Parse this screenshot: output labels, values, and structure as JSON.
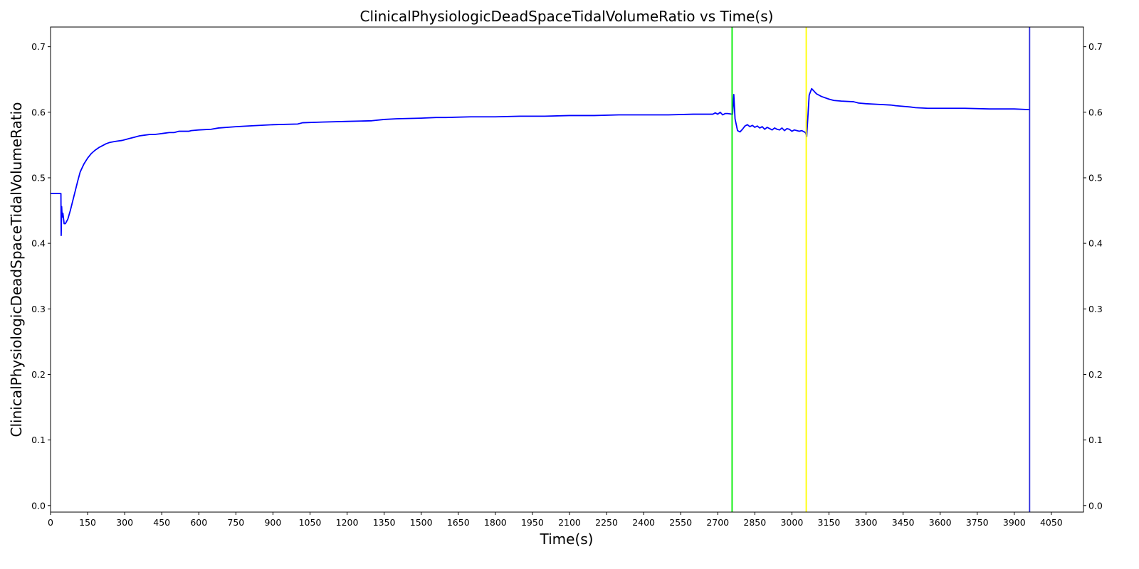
{
  "chart_data": {
    "type": "line",
    "title": "ClinicalPhysiologicDeadSpaceTidalVolumeRatio vs Time(s)",
    "xlabel": "Time(s)",
    "ylabel": "ClinicalPhysiologicDeadSpaceTidalVolumeRatio",
    "xlim": [
      0,
      4180
    ],
    "ylim": [
      -0.01,
      0.73
    ],
    "xticks": [
      0,
      150,
      300,
      450,
      600,
      750,
      900,
      1050,
      1200,
      1350,
      1500,
      1650,
      1800,
      1950,
      2100,
      2250,
      2400,
      2550,
      2700,
      2850,
      3000,
      3150,
      3300,
      3450,
      3600,
      3750,
      3900,
      4050
    ],
    "yticks": [
      0.0,
      0.1,
      0.2,
      0.3,
      0.4,
      0.5,
      0.6,
      0.7
    ],
    "ytick_labels": [
      "0.0",
      "0.1",
      "0.2",
      "0.3",
      "0.4",
      "0.5",
      "0.6",
      "0.7"
    ],
    "right_axis_duplicate": true,
    "grid": false,
    "series": [
      {
        "color": "#0000ff",
        "x": [
          0,
          40,
          42,
          43,
          45,
          47,
          50,
          55,
          60,
          70,
          80,
          90,
          100,
          110,
          120,
          135,
          150,
          165,
          180,
          195,
          210,
          225,
          240,
          255,
          270,
          290,
          300,
          320,
          340,
          360,
          380,
          400,
          420,
          440,
          460,
          480,
          500,
          520,
          560,
          570,
          600,
          650,
          680,
          750,
          800,
          900,
          1000,
          1020,
          1100,
          1200,
          1300,
          1350,
          1400,
          1500,
          1560,
          1600,
          1700,
          1800,
          1900,
          2000,
          2100,
          2200,
          2300,
          2400,
          2500,
          2600,
          2680,
          2690,
          2700,
          2710,
          2720,
          2730,
          2740,
          2760,
          2765,
          2770,
          2780,
          2790,
          2800,
          2810,
          2820,
          2830,
          2840,
          2850,
          2860,
          2870,
          2880,
          2890,
          2900,
          2910,
          2920,
          2930,
          2940,
          2950,
          2960,
          2970,
          2980,
          2990,
          3000,
          3010,
          3020,
          3030,
          3040,
          3050,
          3055,
          3060,
          3070,
          3080,
          3090,
          3100,
          3120,
          3150,
          3170,
          3200,
          3250,
          3270,
          3300,
          3350,
          3400,
          3420,
          3450,
          3480,
          3500,
          3550,
          3600,
          3700,
          3800,
          3900,
          3960
        ],
        "values": [
          0.476,
          0.476,
          0.476,
          0.412,
          0.456,
          0.44,
          0.446,
          0.43,
          0.43,
          0.437,
          0.45,
          0.465,
          0.48,
          0.495,
          0.509,
          0.521,
          0.53,
          0.537,
          0.542,
          0.546,
          0.549,
          0.552,
          0.554,
          0.555,
          0.556,
          0.557,
          0.558,
          0.56,
          0.562,
          0.564,
          0.565,
          0.566,
          0.566,
          0.567,
          0.568,
          0.569,
          0.569,
          0.571,
          0.571,
          0.572,
          0.573,
          0.574,
          0.576,
          0.578,
          0.579,
          0.581,
          0.582,
          0.584,
          0.585,
          0.586,
          0.587,
          0.589,
          0.59,
          0.591,
          0.592,
          0.592,
          0.593,
          0.593,
          0.594,
          0.594,
          0.595,
          0.595,
          0.596,
          0.596,
          0.596,
          0.597,
          0.597,
          0.599,
          0.597,
          0.6,
          0.596,
          0.598,
          0.598,
          0.597,
          0.627,
          0.59,
          0.572,
          0.57,
          0.574,
          0.579,
          0.581,
          0.578,
          0.58,
          0.577,
          0.579,
          0.576,
          0.578,
          0.574,
          0.577,
          0.575,
          0.573,
          0.576,
          0.574,
          0.573,
          0.576,
          0.572,
          0.575,
          0.574,
          0.571,
          0.573,
          0.572,
          0.571,
          0.572,
          0.57,
          0.569,
          0.563,
          0.626,
          0.636,
          0.632,
          0.628,
          0.624,
          0.62,
          0.618,
          0.617,
          0.616,
          0.614,
          0.613,
          0.612,
          0.611,
          0.61,
          0.609,
          0.608,
          0.607,
          0.606,
          0.606,
          0.606,
          0.605,
          0.605,
          0.604
        ]
      }
    ],
    "vertical_lines": [
      {
        "x": 2758,
        "color": "#00ee00"
      },
      {
        "x": 3058,
        "color": "#ffff00"
      },
      {
        "x": 3962,
        "color": "#2b2bdd"
      }
    ]
  }
}
